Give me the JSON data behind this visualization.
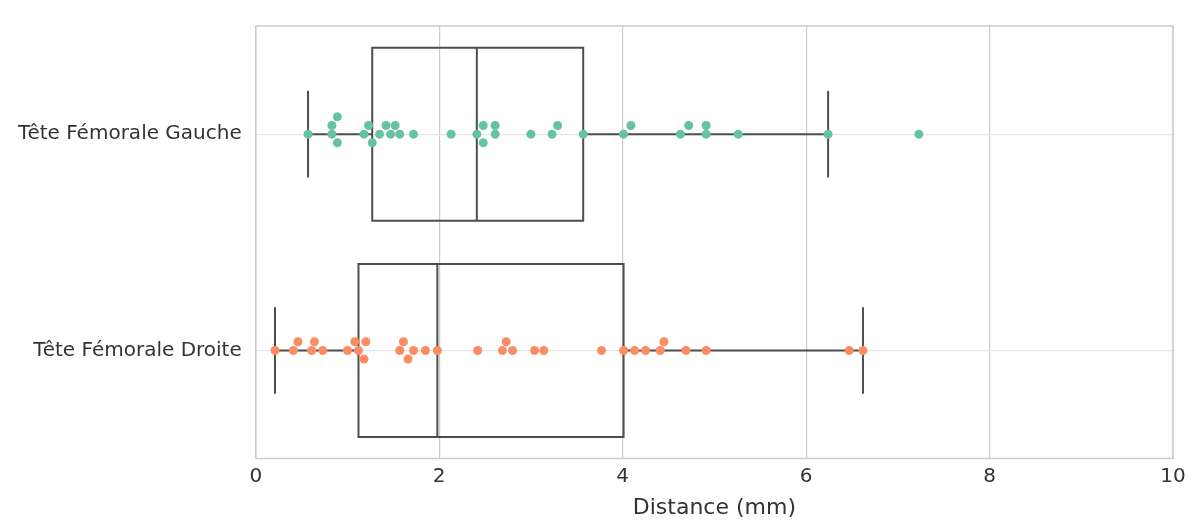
{
  "chart_data": {
    "type": "box",
    "orientation": "horizontal",
    "xlabel": "Distance (mm)",
    "categories": [
      "Tête Fémorale Gauche",
      "Tête Fémorale Droite"
    ],
    "xlim": [
      0,
      10
    ],
    "xticks": [
      0,
      2,
      4,
      6,
      8,
      10
    ],
    "grid": true,
    "series": [
      {
        "color": "#4d4d4d",
        "boxes": [
          {
            "low": 0.57,
            "q1": 1.27,
            "median": 2.41,
            "q3": 3.57,
            "high": 6.24
          },
          {
            "low": 0.21,
            "q1": 1.12,
            "median": 1.98,
            "q3": 4.01,
            "high": 6.62
          }
        ]
      },
      {
        "type": "scatter",
        "color": "#66c2a5",
        "x": [
          "Tête Fémorale Gauche",
          "Tête Fémorale Gauche",
          "Tête Fémorale Gauche",
          "Tête Fémorale Gauche",
          "Tête Fémorale Gauche",
          "Tête Fémorale Gauche",
          "Tête Fémorale Gauche",
          "Tête Fémorale Gauche",
          "Tête Fémorale Gauche",
          "Tête Fémorale Gauche",
          "Tête Fémorale Gauche",
          "Tête Fémorale Gauche",
          "Tête Fémorale Gauche",
          "Tête Fémorale Gauche",
          "Tête Fémorale Gauche",
          "Tête Fémorale Gauche",
          "Tête Fémorale Gauche",
          "Tête Fémorale Gauche",
          "Tête Fémorale Gauche",
          "Tête Fémorale Gauche",
          "Tête Fémorale Gauche",
          "Tête Fémorale Gauche",
          "Tête Fémorale Gauche",
          "Tête Fémorale Gauche",
          "Tête Fémorale Gauche",
          "Tête Fémorale Gauche",
          "Tête Fémorale Gauche",
          "Tête Fémorale Gauche",
          "Tête Fémorale Gauche",
          "Tête Fémorale Gauche",
          "Tête Fémorale Gauche",
          "Tête Fémorale Gauche",
          "Tête Fémorale Gauche"
        ],
        "values": [
          0.57,
          0.83,
          0.83,
          0.89,
          0.89,
          1.18,
          1.23,
          1.27,
          1.35,
          1.42,
          1.47,
          1.52,
          1.57,
          1.72,
          2.13,
          2.41,
          2.48,
          2.48,
          2.61,
          2.61,
          3.0,
          3.23,
          3.29,
          3.57,
          4.01,
          4.09,
          4.63,
          4.72,
          4.91,
          4.91,
          5.26,
          6.24,
          7.23
        ]
      },
      {
        "type": "scatter",
        "color": "#fc8d62",
        "x": [
          "Tête Fémorale Droite",
          "Tête Fémorale Droite",
          "Tête Fémorale Droite",
          "Tête Fémorale Droite",
          "Tête Fémorale Droite",
          "Tête Fémorale Droite",
          "Tête Fémorale Droite",
          "Tête Fémorale Droite",
          "Tête Fémorale Droite",
          "Tête Fémorale Droite",
          "Tête Fémorale Droite",
          "Tête Fémorale Droite",
          "Tête Fémorale Droite",
          "Tête Fémorale Droite",
          "Tête Fémorale Droite",
          "Tête Fémorale Droite",
          "Tête Fémorale Droite",
          "Tête Fémorale Droite",
          "Tête Fémorale Droite",
          "Tête Fémorale Droite",
          "Tête Fémorale Droite",
          "Tête Fémorale Droite",
          "Tête Fémorale Droite",
          "Tête Fémorale Droite",
          "Tête Fémorale Droite",
          "Tête Fémorale Droite",
          "Tête Fémorale Droite",
          "Tête Fémorale Droite",
          "Tête Fémorale Droite",
          "Tête Fémorale Droite",
          "Tête Fémorale Droite",
          "Tête Fémorale Droite",
          "Tête Fémorale Droite"
        ],
        "values": [
          0.21,
          0.41,
          0.46,
          0.61,
          0.64,
          0.73,
          1.0,
          1.08,
          1.12,
          1.18,
          1.2,
          1.57,
          1.61,
          1.66,
          1.72,
          1.85,
          1.98,
          2.42,
          2.69,
          2.73,
          2.8,
          3.04,
          3.14,
          3.77,
          4.01,
          4.13,
          4.25,
          4.41,
          4.45,
          4.69,
          4.91,
          6.47,
          6.62
        ]
      }
    ]
  }
}
